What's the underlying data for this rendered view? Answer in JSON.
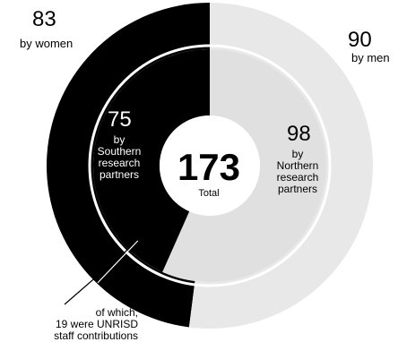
{
  "chart_data": {
    "type": "pie",
    "subtype": "nested-donut",
    "total": {
      "value": "173",
      "label": "Total"
    },
    "outer_ring": {
      "slices": [
        {
          "key": "women",
          "value": 83,
          "value_text": "83",
          "label": "by women",
          "color": "#000000"
        },
        {
          "key": "men",
          "value": 90,
          "value_text": "90",
          "label": "by men",
          "color": "#e8e8e8"
        }
      ]
    },
    "inner_ring": {
      "slices": [
        {
          "key": "southern",
          "value": 75,
          "value_text": "75",
          "label_lines": [
            "by",
            "Southern",
            "research",
            "partners"
          ],
          "color": "#000000"
        },
        {
          "key": "northern",
          "value": 98,
          "value_text": "98",
          "label_lines": [
            "by",
            "Northern",
            "research",
            "partners"
          ],
          "color": "#e0e0e0"
        }
      ],
      "sub_arc": {
        "value": 19,
        "color": "#ffffff"
      }
    },
    "annotation": {
      "lines": [
        "of which,",
        "19 were UNRISD",
        "staff contributions"
      ]
    }
  }
}
